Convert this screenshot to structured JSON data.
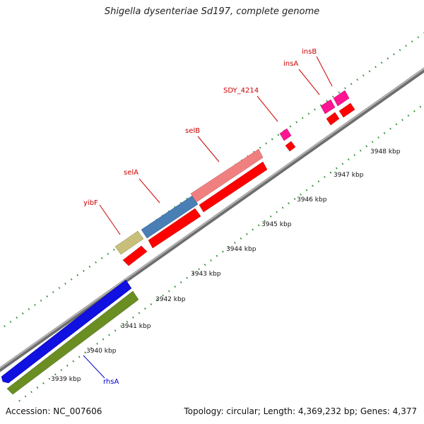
{
  "title": "Shigella dysenteriae Sd197, complete genome",
  "footer": {
    "accession": "Accession: NC_007606",
    "summary": "Topology: circular; Length: 4,369,232 bp; Genes: 4,377"
  },
  "colors": {
    "backbone": "#8c8c8c",
    "tick": "#2e8b2e",
    "cds_red": "#ff0000",
    "blue": "#1010e0",
    "olive": "#6b8e23",
    "khaki": "#c8c07a",
    "steel": "#4a7fb5",
    "salmon": "#f08080",
    "magenta": "#ff1493",
    "label_red": "#cc0000",
    "label_blue": "#0000cc"
  },
  "scale_labels": [
    "3939 kbp",
    "3940 kbp",
    "3941 kbp",
    "3942 kbp",
    "3943 kbp",
    "3944 kbp",
    "3945 kbp",
    "3946 kbp",
    "3947 kbp",
    "3948 kbp"
  ],
  "gene_labels": [
    "yibF",
    "selA",
    "selB",
    "SDY_4214",
    "insA",
    "insB",
    "rhsA"
  ]
}
